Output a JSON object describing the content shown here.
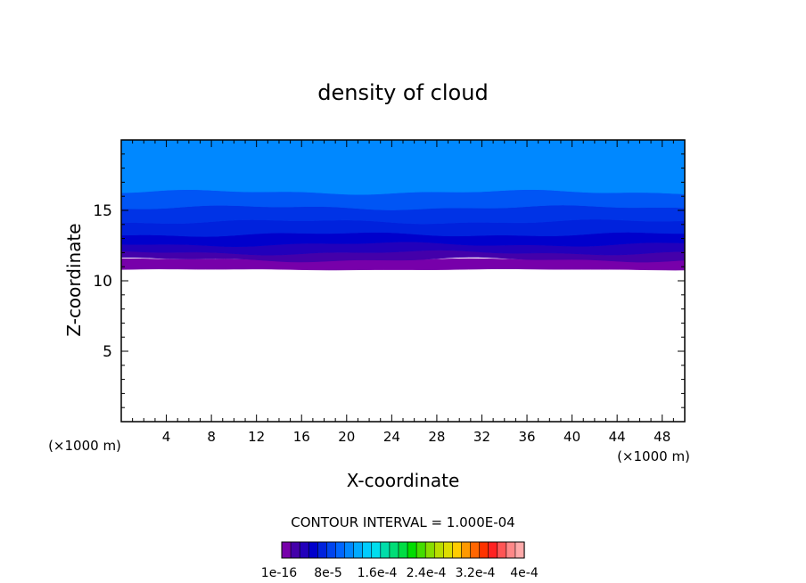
{
  "chart_data": {
    "type": "heatmap",
    "title": "density of cloud",
    "xlabel": "X-coordinate",
    "ylabel": "Z-coordinate",
    "x_unit": "(×1000 m)",
    "xlim": [
      0,
      50
    ],
    "ylim": [
      0,
      20
    ],
    "x_ticks": [
      4,
      8,
      12,
      16,
      20,
      24,
      28,
      32,
      36,
      40,
      44,
      48
    ],
    "y_ticks": [
      5,
      10,
      15
    ],
    "contour_note": "CONTOUR INTERVAL = 1.000E-04",
    "colorbar": {
      "labels": [
        "1e-16",
        "8e-5",
        "1.6e-4",
        "2.4e-4",
        "3.2e-4",
        "4e-4"
      ],
      "colors": [
        "#7700aa",
        "#4400aa",
        "#2200bb",
        "#0000cc",
        "#0022dd",
        "#0044ee",
        "#0066ff",
        "#0088ff",
        "#00aaff",
        "#00ccff",
        "#00ddee",
        "#00ddaa",
        "#00dd77",
        "#00dd44",
        "#00dd00",
        "#44dd00",
        "#88dd00",
        "#bbdd00",
        "#dddd00",
        "#ffcc00",
        "#ff9900",
        "#ff6600",
        "#ff3300",
        "#ff2222",
        "#ff5555",
        "#ff8888",
        "#ffaaaa"
      ]
    },
    "cloud_layers": [
      {
        "z_bottom": 10.8,
        "z_top": 11.5,
        "color": "#7700aa"
      },
      {
        "z_bottom": 11.5,
        "z_top": 12.0,
        "color": "#4400aa"
      },
      {
        "z_bottom": 12.0,
        "z_top": 12.6,
        "color": "#2200bb"
      },
      {
        "z_bottom": 12.6,
        "z_top": 13.3,
        "color": "#0000cc"
      },
      {
        "z_bottom": 13.3,
        "z_top": 14.2,
        "color": "#0022dd"
      },
      {
        "z_bottom": 14.2,
        "z_top": 15.2,
        "color": "#0033e6"
      },
      {
        "z_bottom": 15.2,
        "z_top": 16.3,
        "color": "#0055f5"
      },
      {
        "z_bottom": 16.3,
        "z_top": 20.0,
        "color": "#0088ff"
      }
    ]
  }
}
